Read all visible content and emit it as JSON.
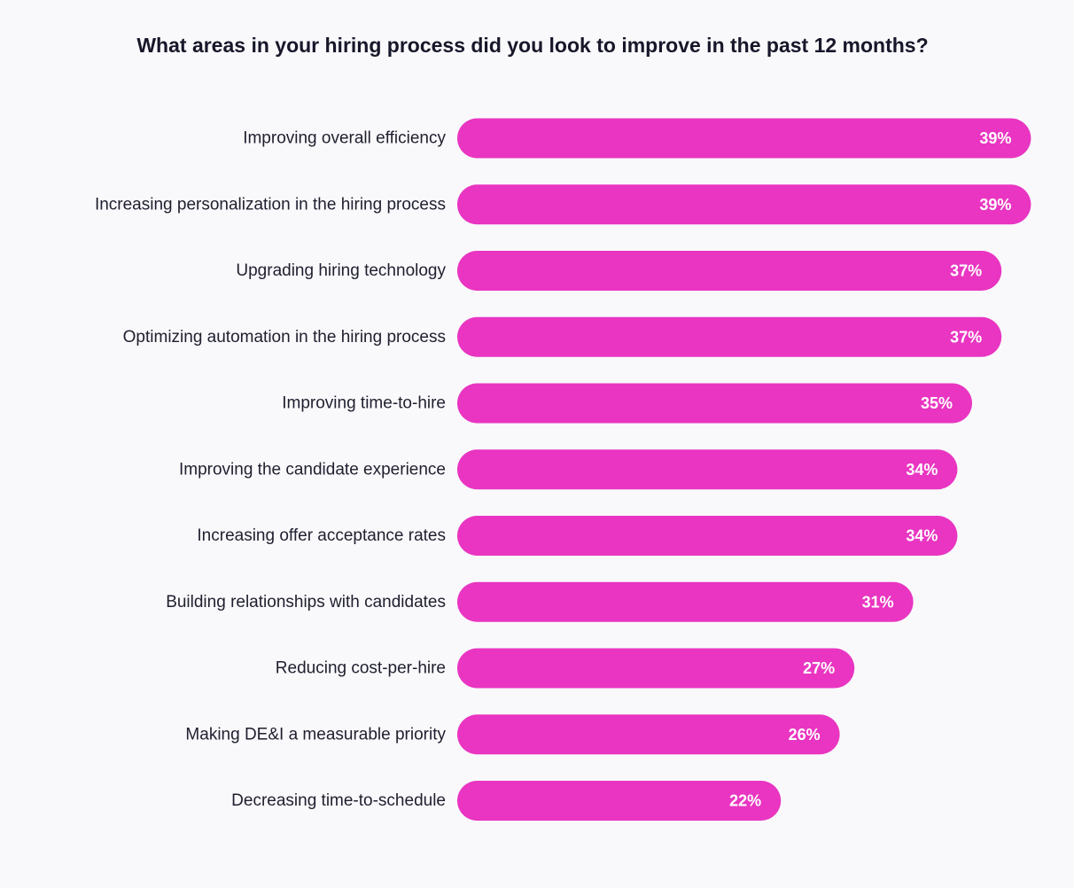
{
  "chart_data": {
    "type": "bar",
    "orientation": "horizontal",
    "title": "What areas in your hiring process did you look to improve in the past 12 months?",
    "categories": [
      "Improving overall efficiency",
      "Increasing personalization in the hiring process",
      "Upgrading hiring technology",
      "Optimizing automation in the hiring process",
      "Improving time-to-hire",
      "Improving the candidate experience",
      "Increasing offer acceptance rates",
      "Building relationships with candidates",
      "Reducing cost-per-hire",
      "Making DE&I a measurable priority",
      "Decreasing time-to-schedule"
    ],
    "values": [
      39,
      39,
      37,
      37,
      35,
      34,
      34,
      31,
      27,
      26,
      22
    ],
    "value_labels": [
      "39%",
      "39%",
      "37%",
      "37%",
      "35%",
      "34%",
      "34%",
      "31%",
      "27%",
      "26%",
      "22%"
    ],
    "unit": "%",
    "bar_color": "#e935c1",
    "value_label_color": "#ffffff",
    "background": "#f9f9fc",
    "grid": false,
    "legend": "none"
  }
}
